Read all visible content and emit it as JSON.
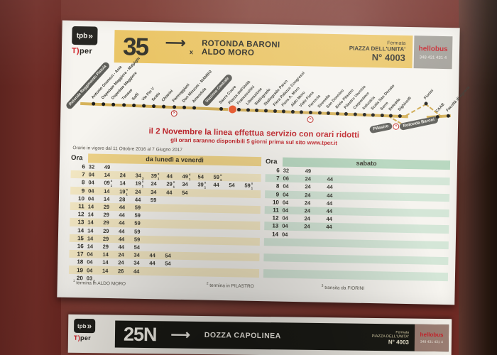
{
  "top_sign": {
    "operator_logo": "tpb",
    "operator_chevron": "»",
    "operator_brand_t": "T)",
    "operator_brand_rest": "per",
    "line_number": "35",
    "arrow": "⟶",
    "destination_primary": "ROTONDA BARONI",
    "via_marker": "x",
    "destination_secondary": "ALDO MORO",
    "stop_label": "Fermata",
    "stop_name": "PIAZZA DELL'UNITA'",
    "stop_number": "N° 4003",
    "hellobus": "hellobus",
    "hellobus_phone": "348 431 431 4"
  },
  "route": {
    "terminal_start": "Rotonda Reggimento Pistoia",
    "station_box": "Stazione Centrale",
    "terminal_end": "Rotonda Baroni",
    "branch_box": "Pilastro",
    "highlight_stop": "Piazza dell'Unità",
    "stops_before_station": [
      "Antonio Gramsci - Asia",
      "Ospedale Maggiore - Malpighi",
      "Ospedale Maggiore",
      "Timavo",
      "Saffi",
      "Via Pio V",
      "Scalo",
      "Chiarini",
      "Parmeggiani",
      "Don Minzoni - MAMBO",
      "Amendola"
    ],
    "stops_after_station": [
      "Sacro Cuore",
      "Piazza dell'Unità",
      "Franceschini",
      "Liberazione",
      "Stalingrado",
      "Stalingrado Parco",
      "Fiera Palazzo Congressi",
      "Fiera A. Moro",
      "Aldo Moro",
      "Viale Fiera",
      "Ferrovia",
      "Sirenella",
      "San Donnino",
      "Bivio Pilastro",
      "Pilastro Vecchio",
      "Carpentiere",
      "Industria",
      "Scala San Donato",
      "Serre",
      "Deledda",
      "Sighinolfi"
    ],
    "branch_stops": [
      "Fiorini",
      "CAAB",
      "Facoltà di Agraria"
    ],
    "interchange_icon": "✕"
  },
  "notice": {
    "line1": "il 2 Novembre la linea effettua servizio con orari ridotti",
    "line2": "gli orari saranno disponibili 5 giorni prima sul sito www.tper.it"
  },
  "validity": "Orario in vigore dal 11 Ottobre 2016 al 7 Giugno 2017",
  "timetable": {
    "hour_header": "Ora",
    "weekday": {
      "label": "da lunedì a venerdì",
      "rows": [
        {
          "hour": "6",
          "minutes": [
            "32",
            "49"
          ]
        },
        {
          "hour": "7",
          "minutes": [
            "04",
            "14",
            "24",
            "34_3",
            "39^x_1",
            "44",
            "49^x_1",
            "54",
            "59^x_1"
          ]
        },
        {
          "hour": "8",
          "minutes": [
            "04",
            "09^x_1",
            "14",
            "19^x_1",
            "24",
            "29^x_1",
            "34",
            "39^x_1",
            "44",
            "54",
            "59^x_1"
          ]
        },
        {
          "hour": "9",
          "minutes": [
            "04",
            "14",
            "19^x_1",
            "24",
            "34",
            "44",
            "54"
          ]
        },
        {
          "hour": "10",
          "minutes": [
            "04",
            "14",
            "28",
            "44",
            "59"
          ]
        },
        {
          "hour": "11",
          "minutes": [
            "14",
            "29",
            "44",
            "59"
          ]
        },
        {
          "hour": "12",
          "minutes": [
            "14",
            "29",
            "44",
            "59"
          ]
        },
        {
          "hour": "13",
          "minutes": [
            "14",
            "29",
            "44",
            "59"
          ]
        },
        {
          "hour": "14",
          "minutes": [
            "14",
            "29",
            "44",
            "59"
          ]
        },
        {
          "hour": "15",
          "minutes": [
            "14",
            "29",
            "44",
            "59"
          ]
        },
        {
          "hour": "16",
          "minutes": [
            "14",
            "29",
            "44",
            "54"
          ]
        },
        {
          "hour": "17",
          "minutes": [
            "04",
            "14",
            "24",
            "34",
            "44",
            "54"
          ]
        },
        {
          "hour": "18",
          "minutes": [
            "04",
            "14",
            "24",
            "34",
            "44",
            "54"
          ]
        },
        {
          "hour": "19",
          "minutes": [
            "04",
            "14",
            "26",
            "44"
          ]
        },
        {
          "hour": "20",
          "minutes": [
            "03_2"
          ]
        }
      ]
    },
    "saturday": {
      "label": "sabato",
      "rows": [
        {
          "hour": "6",
          "minutes": [
            "32",
            "49"
          ]
        },
        {
          "hour": "7",
          "minutes": [
            "06",
            "24",
            "44"
          ]
        },
        {
          "hour": "8",
          "minutes": [
            "04",
            "24",
            "44"
          ]
        },
        {
          "hour": "9",
          "minutes": [
            "04",
            "24",
            "44"
          ]
        },
        {
          "hour": "10",
          "minutes": [
            "04",
            "24",
            "44"
          ]
        },
        {
          "hour": "11",
          "minutes": [
            "04",
            "24",
            "44"
          ]
        },
        {
          "hour": "12",
          "minutes": [
            "04",
            "24",
            "44"
          ]
        },
        {
          "hour": "13",
          "minutes": [
            "04",
            "24",
            "44"
          ]
        },
        {
          "hour": "14",
          "minutes": [
            "04"
          ]
        }
      ]
    }
  },
  "footnotes": [
    {
      "mark": "1",
      "text": "termina in ALDO MORO"
    },
    {
      "mark": "2",
      "text": "termina in PILASTRO"
    },
    {
      "mark": "3",
      "text": "transita da FIORINI"
    }
  ],
  "bottom_sign": {
    "operator_logo": "tpb",
    "operator_chevron": "»",
    "operator_brand_t": "T)",
    "operator_brand_rest": "per",
    "line_number": "25N",
    "arrow": "⟶",
    "destination": "DOZZA CAPOLINEA",
    "stop_label": "Fermata",
    "stop_name": "PIAZZA DELL'UNITA'",
    "stop_number": "N° 4003",
    "hellobus": "hellobus",
    "hellobus_phone": "348 431 431 4"
  },
  "colors": {
    "frame_red": "#7d3b33",
    "band_yellow": "#eac463",
    "stripe_yellow": "#f5e9c4",
    "stripe_green": "#d4e6d7",
    "notice_red": "#c4282e",
    "hellobus_red": "#c5232b",
    "route_line": "#d6b259"
  }
}
